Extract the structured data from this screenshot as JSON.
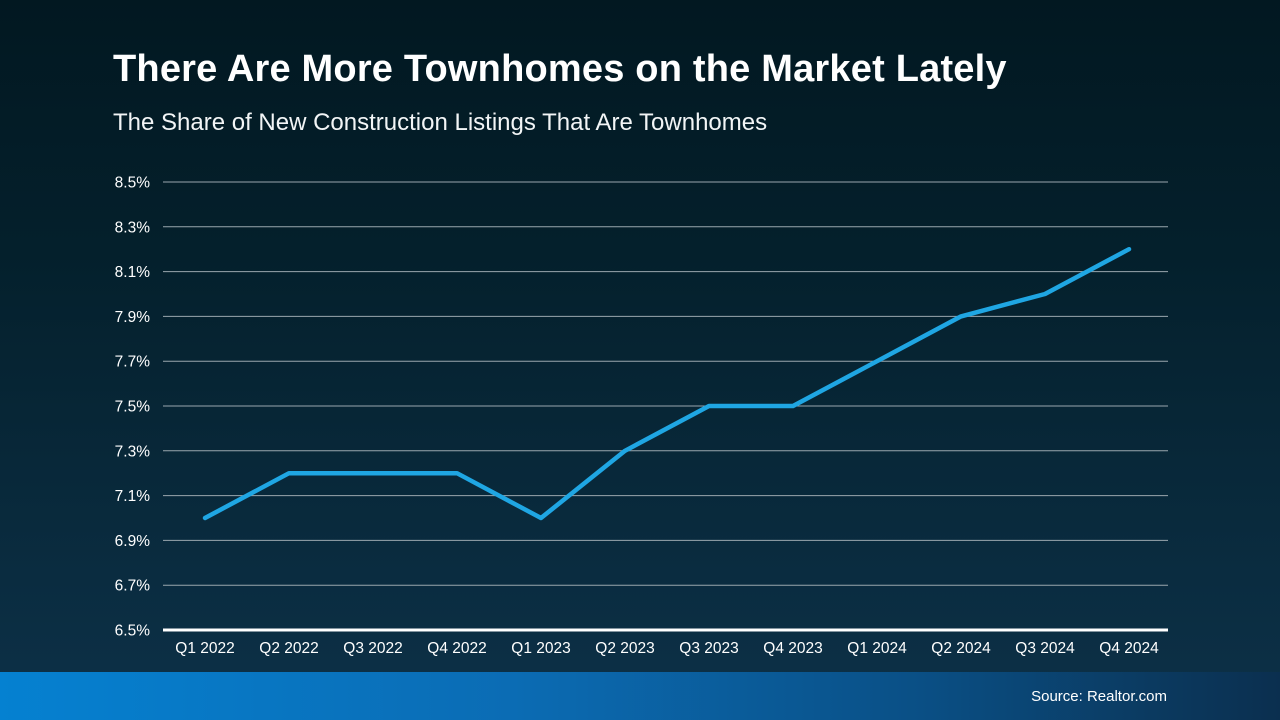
{
  "chart_data": {
    "type": "line",
    "title": "There Are More Townhomes on the Market Lately",
    "subtitle": "The Share of New Construction Listings That Are Townhomes",
    "categories": [
      "Q1 2022",
      "Q2 2022",
      "Q3 2022",
      "Q4 2022",
      "Q1 2023",
      "Q2 2023",
      "Q3 2023",
      "Q4 2023",
      "Q1 2024",
      "Q2 2024",
      "Q3 2024",
      "Q4 2024"
    ],
    "values": [
      7.0,
      7.2,
      7.2,
      7.2,
      7.0,
      7.3,
      7.5,
      7.5,
      7.7,
      7.9,
      8.0,
      8.2
    ],
    "ylim": [
      6.5,
      8.5
    ],
    "ytick_step": 0.2,
    "ytick_labels": [
      "8.5%",
      "8.3%",
      "8.1%",
      "7.9%",
      "7.7%",
      "7.5%",
      "7.3%",
      "7.1%",
      "6.9%",
      "6.7%",
      "6.5%"
    ],
    "xlabel": "",
    "ylabel": "",
    "grid": true,
    "legend_position": "none",
    "source": "Source: Realtor.com"
  },
  "colors": {
    "line": "#1fa6e3",
    "gridline": "#9aa7ae",
    "axis": "#ffffff",
    "tick_text": "#ffffff",
    "footer_left": "#0581d1",
    "footer_right": "#0b2f4f"
  }
}
